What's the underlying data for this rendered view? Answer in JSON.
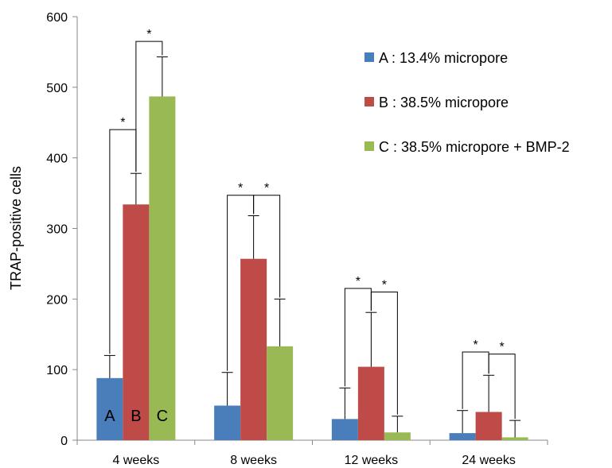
{
  "chart_data": {
    "type": "bar",
    "title": "",
    "xlabel": "",
    "ylabel": "TRAP-positive cells",
    "ylim": [
      0,
      600
    ],
    "yticks": [
      0,
      100,
      200,
      300,
      400,
      500,
      600
    ],
    "grid": false,
    "legend_position": "top-right",
    "categories": [
      "4 weeks",
      "8 weeks",
      "12 weeks",
      "24 weeks"
    ],
    "series": [
      {
        "name": "A : 13.4% micropore",
        "letter": "A",
        "color": "#4A7EBB",
        "values": [
          88,
          49,
          30,
          10
        ],
        "errors": [
          32,
          47,
          44,
          32
        ]
      },
      {
        "name": "B : 38.5% micropore",
        "letter": "B",
        "color": "#BE4B48",
        "values": [
          334,
          257,
          104,
          40
        ],
        "errors": [
          44,
          61,
          77,
          52
        ]
      },
      {
        "name": "C : 38.5% micropore + BMP-2",
        "letter": "C",
        "color": "#98B954",
        "values": [
          487,
          133,
          11,
          4
        ],
        "errors": [
          56,
          67,
          23,
          24
        ]
      }
    ],
    "bar_letters_category": 0,
    "significance": [
      {
        "category": 0,
        "from": 0,
        "to": 1,
        "label": "*",
        "y": 440
      },
      {
        "category": 0,
        "from": 1,
        "to": 2,
        "label": "*",
        "y": 565
      },
      {
        "category": 1,
        "from": 0,
        "to": 1,
        "label": "*",
        "y": 347
      },
      {
        "category": 1,
        "from": 1,
        "to": 2,
        "label": "*",
        "y": 347
      },
      {
        "category": 2,
        "from": 0,
        "to": 1,
        "label": "*",
        "y": 215
      },
      {
        "category": 2,
        "from": 1,
        "to": 2,
        "label": "*",
        "y": 210
      },
      {
        "category": 3,
        "from": 0,
        "to": 1,
        "label": "*",
        "y": 125
      },
      {
        "category": 3,
        "from": 1,
        "to": 2,
        "label": "*",
        "y": 122
      }
    ]
  }
}
